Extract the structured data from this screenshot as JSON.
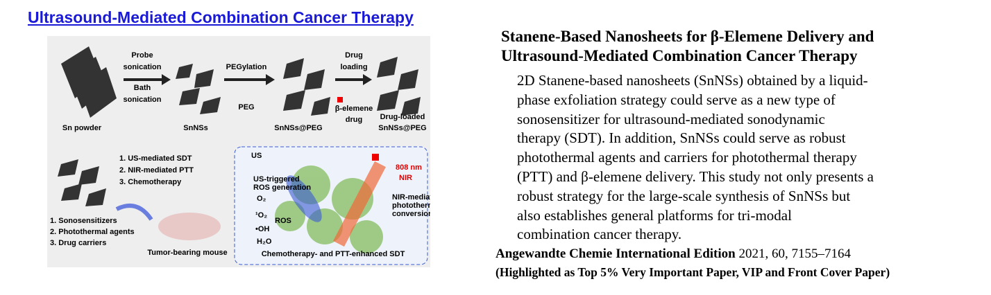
{
  "header": {
    "title": "Ultrasound-Mediated Combination Cancer Therapy"
  },
  "figure": {
    "labels": [
      "Probe",
      "sonication",
      "Bath",
      "sonication",
      "PEGylation",
      "PEG",
      "Drug",
      "loading",
      "β-elemene",
      "drug",
      "Sn powder",
      "SnNSs",
      "SnNSs@PEG",
      "Drug-loaded",
      "SnNSs@PEG",
      "1. US-mediated SDT",
      "2. NIR-mediated PTT",
      "3. Chemotherapy",
      "1. Sonosensitizers",
      "2. Photothermal agents",
      "3. Drug carriers",
      "Tumor-bearing mouse",
      "US",
      "US-triggered",
      "ROS generation",
      "O₂",
      "¹O₂",
      "•OH",
      "H₂O",
      "ROS",
      "808 nm",
      "NIR",
      "NIR-mediated",
      "photothermal",
      "conversion",
      "Chemotherapy- and PTT-enhanced SDT"
    ]
  },
  "article": {
    "title_lines": [
      "Stanene-Based Nanosheets for β-Elemene Delivery and",
      "Ultrasound-Mediated Combination Cancer Therapy"
    ],
    "abstract_lines": [
      "2D Stanene-based nanosheets (SnNSs) obtained by a liquid-",
      "phase exfoliation strategy could serve as a new type of",
      "sonosensitizer for ultrasound-mediated sonodynamic",
      "therapy (SDT). In addition, SnNSs could serve as robust",
      "photothermal agents and carriers for photothermal therapy",
      "(PTT) and β-elemene delivery. This study not only presents a",
      "robust strategy for the large-scale synthesis of SnNSs but",
      "also establishes general platforms for tri-modal",
      "combination cancer therapy."
    ],
    "journal": "Angewandte Chemie International Edition",
    "citation": "2021, 60, 7155–7164",
    "highlight": "(Highlighted as Top 5% Very Important Paper, VIP and Front Cover Paper)"
  }
}
